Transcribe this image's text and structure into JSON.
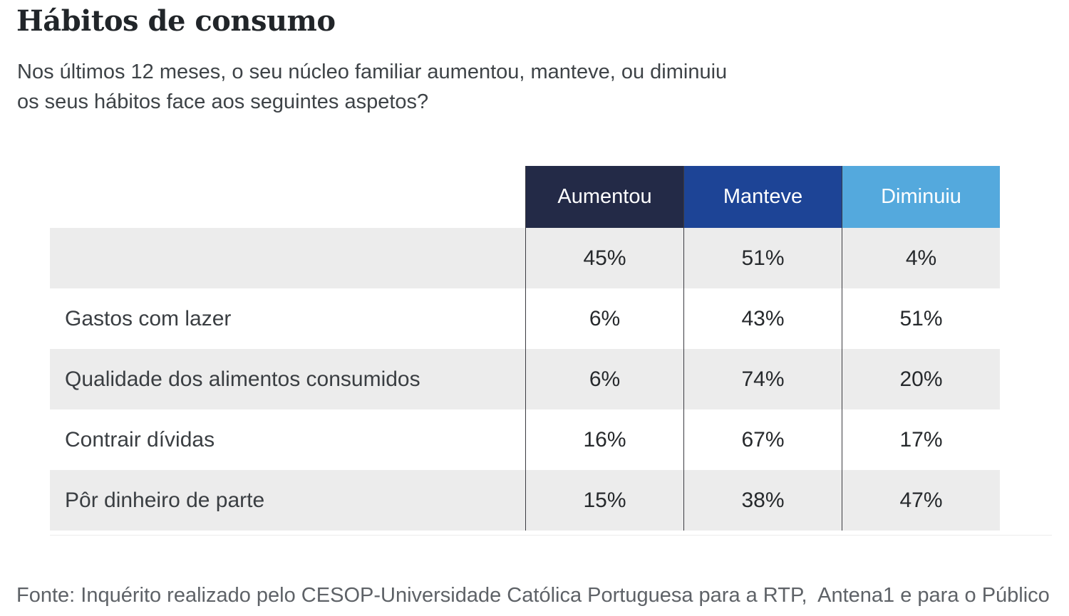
{
  "header": {
    "title": "Hábitos de consumo",
    "subtitle_line1": "Nos últimos 12 meses, o seu núcleo familiar aumentou, manteve, ou diminuiu",
    "subtitle_line2": "os seus hábitos face aos seguintes aspetos?"
  },
  "table": {
    "columns": [
      {
        "label": "Aumentou",
        "color": "#232a47"
      },
      {
        "label": "Manteve",
        "color": "#1d4496"
      },
      {
        "label": "Diminuiu",
        "color": "#54a9dd"
      }
    ],
    "rows": [
      {
        "label": "",
        "values": [
          "45%",
          "51%",
          "4%"
        ]
      },
      {
        "label": "Gastos com lazer",
        "values": [
          "6%",
          "43%",
          "51%"
        ]
      },
      {
        "label": "Qualidade dos alimentos consumidos",
        "values": [
          "6%",
          "74%",
          "20%"
        ]
      },
      {
        "label": "Contrair dívidas",
        "values": [
          "16%",
          "67%",
          "17%"
        ]
      },
      {
        "label": "Pôr dinheiro de parte",
        "values": [
          "15%",
          "38%",
          "47%"
        ]
      }
    ]
  },
  "footer": {
    "source": "Fonte: Inquérito realizado pelo CESOP-Universidade Católica Portuguesa para a RTP,  Antena1 e para o Público"
  },
  "colors": {
    "row_stripe": "#ececec",
    "grid_line": "#3c3c42",
    "header_text": "#ffffff",
    "title_text": "#212529",
    "source_text": "#5e6267"
  },
  "chart_data": {
    "type": "table",
    "title": "Hábitos de consumo",
    "subtitle": "Nos últimos 12 meses, o seu núcleo familiar aumentou, manteve, ou diminuiu os seus hábitos face aos seguintes aspetos?",
    "columns": [
      "Aumentou",
      "Manteve",
      "Diminuiu"
    ],
    "column_colors": [
      "#232a47",
      "#1d4496",
      "#54a9dd"
    ],
    "rows": [
      {
        "label": "",
        "Aumentou": 45,
        "Manteve": 51,
        "Diminuiu": 4
      },
      {
        "label": "Gastos com lazer",
        "Aumentou": 6,
        "Manteve": 43,
        "Diminuiu": 51
      },
      {
        "label": "Qualidade dos alimentos consumidos",
        "Aumentou": 6,
        "Manteve": 74,
        "Diminuiu": 20
      },
      {
        "label": "Contrair dívidas",
        "Aumentou": 16,
        "Manteve": 67,
        "Diminuiu": 17
      },
      {
        "label": "Pôr dinheiro de parte",
        "Aumentou": 15,
        "Manteve": 38,
        "Diminuiu": 47
      }
    ],
    "unit": "%",
    "source": "Fonte: Inquérito realizado pelo CESOP-Universidade Católica Portuguesa para a RTP, Antena1 e para o Público",
    "layout": {
      "zebra_stripes": true,
      "grid": "vertical-only",
      "legend_position": "column-headers"
    }
  }
}
